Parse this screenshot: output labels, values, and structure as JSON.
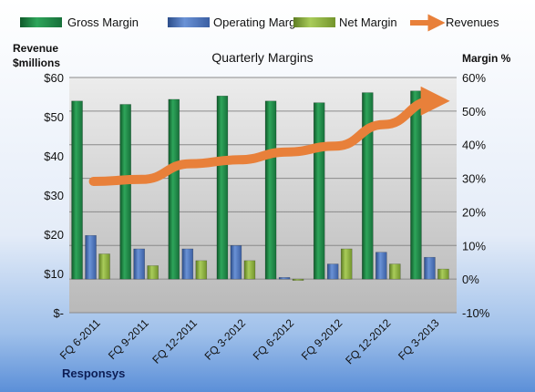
{
  "chart_data": {
    "type": "bar",
    "title": "Quarterly Margins",
    "company": "Responsys",
    "left_axis": {
      "title_line1": "Revenue",
      "title_line2": "$millions",
      "range": [
        0,
        60
      ],
      "ticks": [
        0,
        10,
        20,
        30,
        40,
        50,
        60
      ],
      "tick_labels": [
        "$-",
        "$10",
        "$20",
        "$30",
        "$40",
        "$50",
        "$60"
      ]
    },
    "right_axis": {
      "title": "Margin %",
      "range": [
        -10,
        60
      ],
      "ticks": [
        -10,
        0,
        10,
        20,
        30,
        40,
        50,
        60
      ],
      "tick_labels": [
        "-10%",
        "0%",
        "10%",
        "20%",
        "30%",
        "40%",
        "50%",
        "60%"
      ]
    },
    "categories": [
      "FQ 6-2011",
      "FQ 9-2011",
      "FQ 12-2011",
      "FQ 3-2012",
      "FQ 6-2012",
      "FQ 9-2012",
      "FQ 12-2012",
      "FQ 3-2013"
    ],
    "series": [
      {
        "name": "Gross Margin",
        "axis": "right",
        "kind": "bar",
        "color": "#1f8a45",
        "values": [
          53,
          52,
          53.5,
          54.5,
          53,
          52.5,
          55.5,
          56
        ]
      },
      {
        "name": "Operating Margin",
        "axis": "right",
        "kind": "bar",
        "color": "#4a72b8",
        "values": [
          13,
          9,
          9,
          10,
          0.5,
          4.5,
          8,
          6.5
        ]
      },
      {
        "name": "Net Margin",
        "axis": "right",
        "kind": "bar",
        "color": "#8db33f",
        "values": [
          7.5,
          4,
          5.5,
          5.5,
          -0.3,
          9,
          4.5,
          3
        ]
      },
      {
        "name": "Revenues",
        "axis": "left",
        "kind": "line",
        "color": "#e8803a",
        "values": [
          33.5,
          34,
          38,
          39,
          41,
          42.5,
          48,
          54
        ]
      }
    ],
    "grid": true,
    "legend_position": "top"
  }
}
